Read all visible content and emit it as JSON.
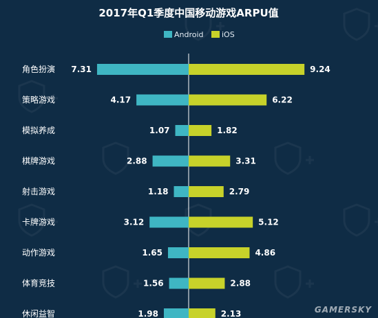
{
  "chart_data": {
    "type": "bar",
    "title": "2017年Q1季度中国移动游戏ARPU值",
    "categories": [
      "角色扮演",
      "策略游戏",
      "模拟养成",
      "棋牌游戏",
      "射击游戏",
      "卡牌游戏",
      "动作游戏",
      "体育竞技",
      "休闲益智"
    ],
    "series": [
      {
        "name": "Android",
        "values": [
          7.31,
          4.17,
          1.07,
          2.88,
          1.18,
          3.12,
          1.65,
          1.56,
          1.98
        ]
      },
      {
        "name": "iOS",
        "values": [
          9.24,
          6.22,
          1.82,
          3.31,
          2.79,
          5.12,
          4.86,
          2.88,
          2.13
        ]
      }
    ],
    "orientation": "horizontal-diverging",
    "legend_position": "top-center",
    "grid": false
  },
  "colors": {
    "background": "#0f2c45",
    "android": "#3fb6c3",
    "ios": "#c7d22a"
  },
  "watermark": "GAMERSKY"
}
